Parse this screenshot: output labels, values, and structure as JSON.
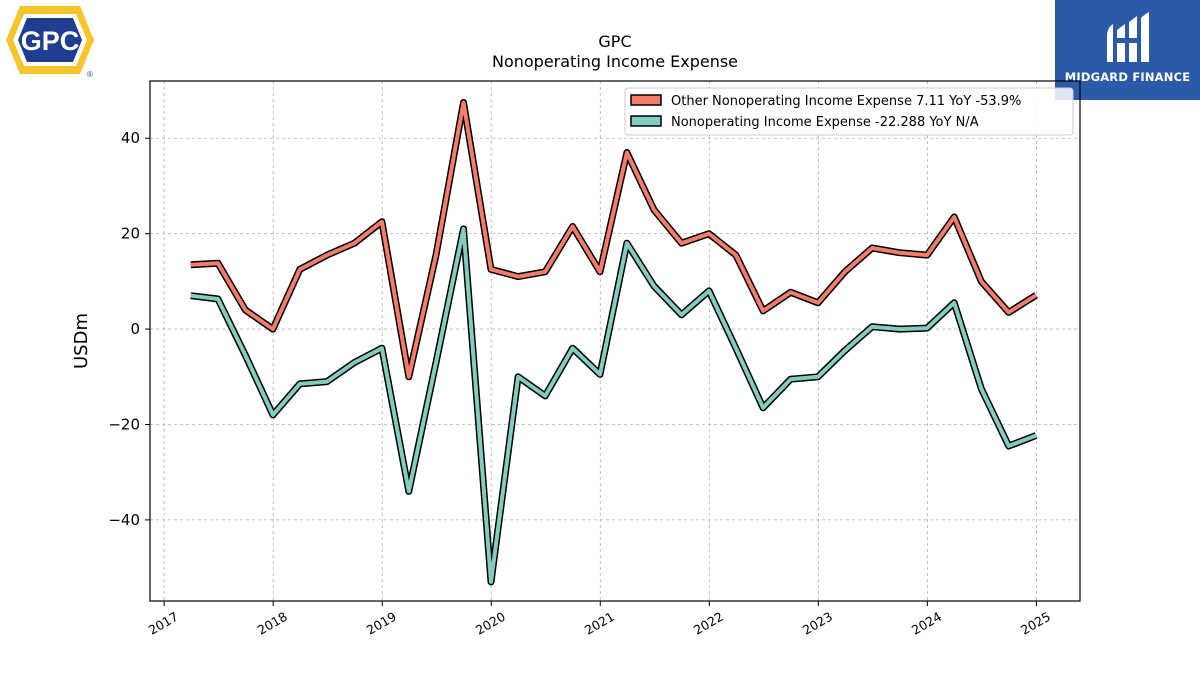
{
  "header": {
    "title": "GPC",
    "subtitle": "Nonoperating Income Expense"
  },
  "brand": {
    "left_logo_text": "GPC",
    "left_logo_mark": "®",
    "right_logo_text": "MIDGARD FINANCE",
    "left_logo_colors": {
      "outer": "#f7c52b",
      "inner": "#1f3e8f"
    },
    "right_logo_color": "#2b5aa8"
  },
  "chart_data": {
    "type": "line",
    "title": "GPC",
    "subtitle": "Nonoperating Income Expense",
    "xlabel": "",
    "ylabel": "USDm",
    "xlim": [
      2016.87,
      2025.4
    ],
    "ylim": [
      -57,
      52
    ],
    "yticks": [
      -40,
      -20,
      0,
      20,
      40
    ],
    "xticks": [
      "2017",
      "2018",
      "2019",
      "2020",
      "2021",
      "2022",
      "2023",
      "2024",
      "2025"
    ],
    "grid": true,
    "legend_position": "top-right",
    "x": [
      "2017-03-31",
      "2017-06-30",
      "2017-09-30",
      "2017-12-31",
      "2018-03-31",
      "2018-06-30",
      "2018-09-30",
      "2018-12-31",
      "2019-03-31",
      "2019-06-30",
      "2019-09-30",
      "2019-12-31",
      "2020-03-31",
      "2020-06-30",
      "2020-09-30",
      "2020-12-31",
      "2021-03-31",
      "2021-06-30",
      "2021-09-30",
      "2021-12-31",
      "2022-03-31",
      "2022-06-30",
      "2022-09-30",
      "2022-12-31",
      "2023-03-31",
      "2023-06-30",
      "2023-09-30",
      "2023-12-31",
      "2024-03-31",
      "2024-06-30",
      "2024-09-30",
      "2024-12-31"
    ],
    "series": [
      {
        "name": "Other Nonoperating Income Expense  7.11 YoY -53.9%",
        "color": "#f47c6b",
        "values": [
          13.5,
          13.8,
          4,
          0,
          12.5,
          15.5,
          18,
          22.5,
          -10,
          15.5,
          47.5,
          12.5,
          11,
          12,
          21.5,
          12,
          37,
          25,
          18,
          20,
          15.5,
          3.8,
          7.7,
          5.5,
          12,
          17,
          16,
          15.5,
          23.5,
          10,
          3.5,
          7.1
        ]
      },
      {
        "name": "Nonoperating Income Expense  -22.288 YoY N/A",
        "color": "#82cdbf",
        "values": [
          7,
          6.3,
          -5.5,
          -18,
          -11.5,
          -11,
          -7,
          -4,
          -34,
          -7,
          21,
          -53,
          -10,
          -14,
          -4,
          -9.5,
          18,
          9,
          3,
          8,
          -4,
          -16.5,
          -10.5,
          -10,
          -4.5,
          0.5,
          0,
          0.2,
          5.5,
          -12.5,
          -24.5,
          -22.3
        ]
      }
    ]
  }
}
